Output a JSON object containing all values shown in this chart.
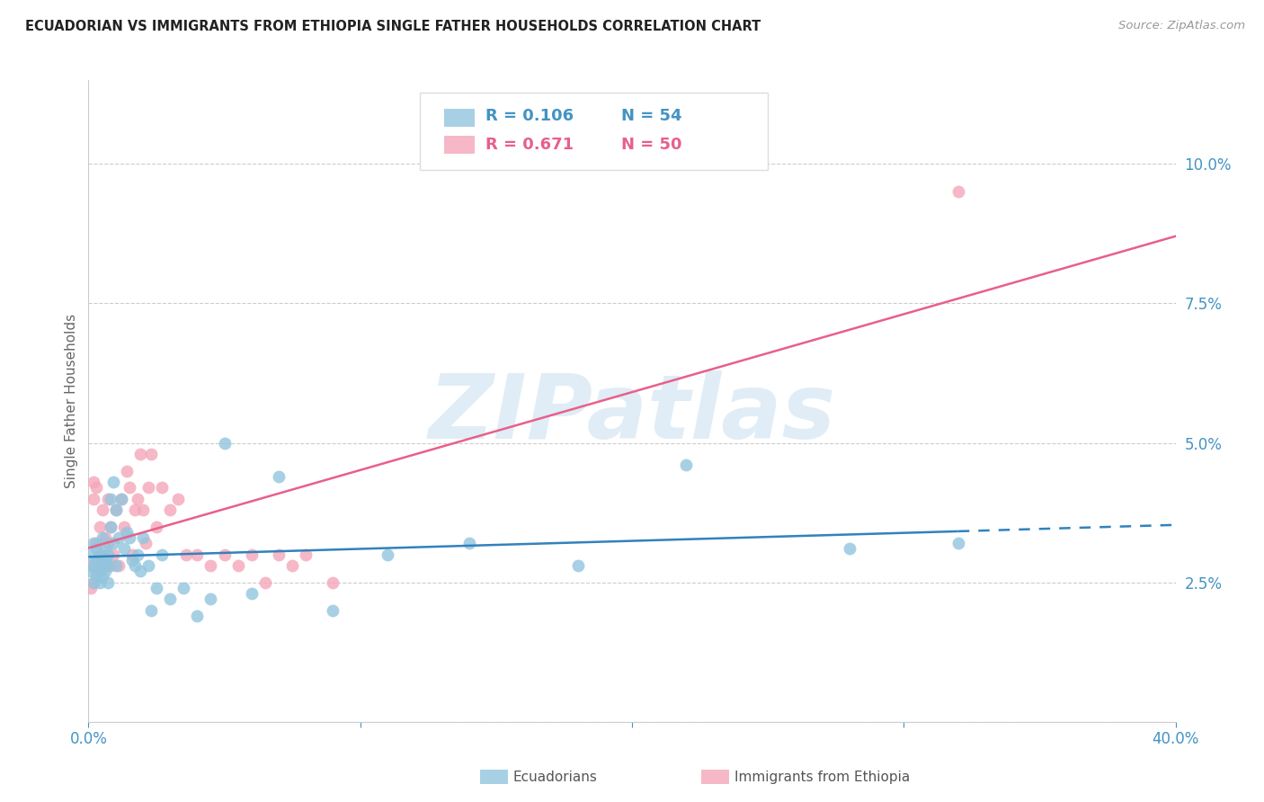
{
  "title": "ECUADORIAN VS IMMIGRANTS FROM ETHIOPIA SINGLE FATHER HOUSEHOLDS CORRELATION CHART",
  "source": "Source: ZipAtlas.com",
  "ylabel": "Single Father Households",
  "yticks": [
    0.0,
    0.025,
    0.05,
    0.075,
    0.1
  ],
  "ytick_labels": [
    "",
    "2.5%",
    "5.0%",
    "7.5%",
    "10.0%"
  ],
  "xmin": 0.0,
  "xmax": 0.4,
  "ymin": 0.0,
  "ymax": 0.115,
  "legend_R1": "0.106",
  "legend_N1": "54",
  "legend_R2": "0.671",
  "legend_N2": "50",
  "color_blue": "#92c5de",
  "color_pink": "#f4a7b9",
  "color_blue_line": "#3182bd",
  "color_pink_line": "#e8608a",
  "color_text_blue": "#4393c3",
  "color_text_pink": "#e8608a",
  "watermark": "ZIPatlas",
  "ecu_x": [
    0.001,
    0.001,
    0.002,
    0.002,
    0.002,
    0.003,
    0.003,
    0.003,
    0.004,
    0.004,
    0.004,
    0.005,
    0.005,
    0.005,
    0.006,
    0.006,
    0.006,
    0.007,
    0.007,
    0.007,
    0.008,
    0.008,
    0.009,
    0.009,
    0.01,
    0.01,
    0.011,
    0.012,
    0.013,
    0.014,
    0.015,
    0.016,
    0.017,
    0.018,
    0.019,
    0.02,
    0.022,
    0.023,
    0.025,
    0.027,
    0.03,
    0.035,
    0.04,
    0.045,
    0.05,
    0.06,
    0.07,
    0.09,
    0.11,
    0.14,
    0.18,
    0.22,
    0.28,
    0.32
  ],
  "ecu_y": [
    0.027,
    0.03,
    0.025,
    0.028,
    0.032,
    0.026,
    0.029,
    0.031,
    0.027,
    0.025,
    0.03,
    0.028,
    0.026,
    0.033,
    0.029,
    0.027,
    0.031,
    0.025,
    0.03,
    0.028,
    0.04,
    0.035,
    0.043,
    0.032,
    0.038,
    0.028,
    0.033,
    0.04,
    0.031,
    0.034,
    0.033,
    0.029,
    0.028,
    0.03,
    0.027,
    0.033,
    0.028,
    0.02,
    0.024,
    0.03,
    0.022,
    0.024,
    0.019,
    0.022,
    0.05,
    0.023,
    0.044,
    0.02,
    0.03,
    0.032,
    0.028,
    0.046,
    0.031,
    0.032
  ],
  "eth_x": [
    0.001,
    0.001,
    0.002,
    0.002,
    0.002,
    0.003,
    0.003,
    0.003,
    0.004,
    0.004,
    0.004,
    0.005,
    0.005,
    0.006,
    0.006,
    0.007,
    0.007,
    0.008,
    0.008,
    0.009,
    0.01,
    0.011,
    0.012,
    0.013,
    0.014,
    0.015,
    0.016,
    0.017,
    0.018,
    0.019,
    0.02,
    0.021,
    0.022,
    0.023,
    0.025,
    0.027,
    0.03,
    0.033,
    0.036,
    0.04,
    0.045,
    0.05,
    0.055,
    0.06,
    0.065,
    0.07,
    0.075,
    0.08,
    0.09,
    0.32
  ],
  "eth_y": [
    0.024,
    0.028,
    0.025,
    0.043,
    0.04,
    0.027,
    0.032,
    0.042,
    0.03,
    0.035,
    0.028,
    0.038,
    0.03,
    0.033,
    0.028,
    0.032,
    0.04,
    0.028,
    0.035,
    0.03,
    0.038,
    0.028,
    0.04,
    0.035,
    0.045,
    0.042,
    0.03,
    0.038,
    0.04,
    0.048,
    0.038,
    0.032,
    0.042,
    0.048,
    0.035,
    0.042,
    0.038,
    0.04,
    0.03,
    0.03,
    0.028,
    0.03,
    0.028,
    0.03,
    0.025,
    0.03,
    0.028,
    0.03,
    0.025,
    0.095
  ]
}
